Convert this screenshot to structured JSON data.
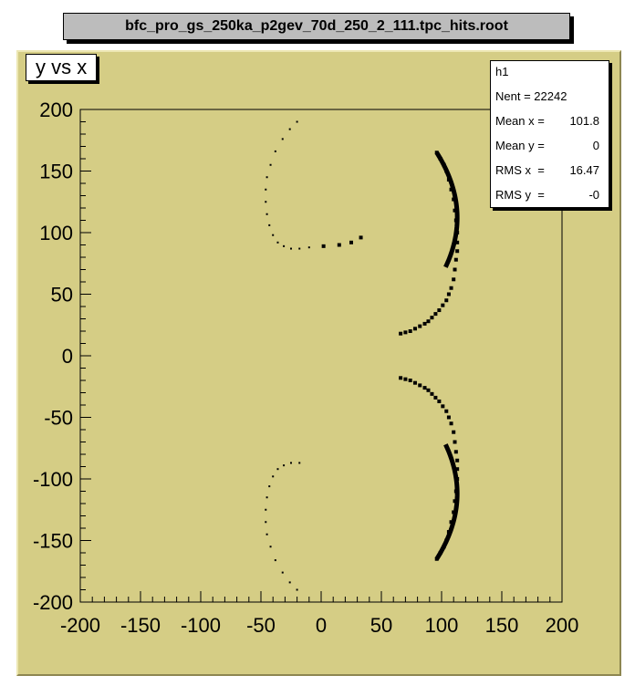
{
  "canvas_title": "bfc_pro_gs_250ka_p2gev_70d_250_2_111.tpc_hits.root",
  "plot_title": "y vs x",
  "stats": {
    "name": "h1",
    "rows": [
      {
        "label": "Nent = 22242",
        "value": ""
      },
      {
        "label": "Mean x = ",
        "value": "101.8"
      },
      {
        "label": "Mean y = ",
        "value": "0"
      },
      {
        "label": "RMS x  = ",
        "value": "16.47"
      },
      {
        "label": "RMS y  = ",
        "value": "-0"
      }
    ]
  },
  "colors": {
    "pad": "#d5cd85",
    "frame": "#d5cd85",
    "marker": "#000000"
  },
  "chart_data": {
    "type": "scatter",
    "title": "y vs x",
    "xlim": [
      -200,
      200
    ],
    "ylim": [
      -200,
      200
    ],
    "xticks": [
      "-200",
      "-150",
      "-100",
      "-50",
      "0",
      "50",
      "100",
      "150",
      "200"
    ],
    "yticks": [
      "-200",
      "-150",
      "-100",
      "-50",
      "0",
      "50",
      "100",
      "150",
      "200"
    ],
    "grid": false,
    "series": [
      {
        "name": "",
        "x": [
          96,
          99,
          102,
          104,
          106,
          108,
          110,
          111,
          112,
          113,
          113,
          113,
          112,
          111,
          110,
          108,
          106,
          104,
          101,
          98,
          95,
          92,
          89,
          86,
          82,
          78,
          74,
          70,
          66,
          96,
          99,
          102,
          104,
          106,
          108,
          110,
          111,
          112,
          113,
          113,
          113,
          112,
          111,
          110,
          108,
          106,
          104,
          101,
          98,
          95,
          92,
          89,
          86,
          82,
          78,
          74,
          70,
          66,
          -20,
          -26,
          -32,
          -38,
          -42,
          -45,
          -46,
          -46,
          -45,
          -43,
          -40,
          -36,
          -31,
          -25,
          -18,
          -10,
          2,
          15,
          25,
          33,
          -20,
          -26,
          -32,
          -38,
          -42,
          -45,
          -46,
          -46,
          -45,
          -43,
          -40,
          -36,
          -31,
          -25,
          -18
        ],
        "y": [
          165,
          160,
          155,
          150,
          143,
          135,
          127,
          118,
          110,
          100,
          92,
          85,
          78,
          70,
          62,
          55,
          50,
          45,
          41,
          37,
          34,
          31,
          28,
          26,
          24,
          22,
          20,
          19,
          18,
          -165,
          -160,
          -155,
          -150,
          -143,
          -135,
          -127,
          -118,
          -110,
          -100,
          -92,
          -85,
          -78,
          -70,
          -62,
          -55,
          -50,
          -45,
          -41,
          -37,
          -34,
          -31,
          -28,
          -26,
          -24,
          -22,
          -20,
          -19,
          -18,
          190,
          184,
          176,
          166,
          155,
          145,
          135,
          125,
          115,
          106,
          98,
          92,
          89,
          87,
          87,
          88,
          89,
          90,
          92,
          96,
          -190,
          -184,
          -176,
          -166,
          -155,
          -145,
          -135,
          -125,
          -115,
          -106,
          -98,
          -92,
          -89,
          -87,
          -87
        ]
      }
    ]
  }
}
